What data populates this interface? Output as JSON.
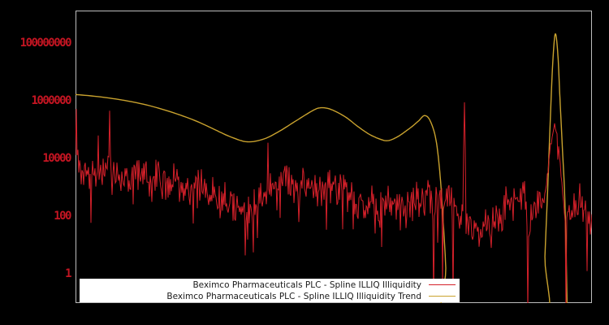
{
  "page": {
    "background": "#000000"
  },
  "chart_data": {
    "type": "line",
    "title": "",
    "x_axis": {
      "tick_labels": []
    },
    "y_axis": {
      "scale": "log",
      "tick_labels": [
        "1",
        "100",
        "10000",
        "1000000",
        "100000000"
      ],
      "tick_values": [
        1,
        100,
        10000,
        1000000,
        100000000
      ],
      "range_log10": [
        -1.01,
        9.13
      ],
      "label_color": "#c41522"
    },
    "plot": {
      "border_color": "#bdbdbd",
      "background": "#000000"
    },
    "legend": {
      "position": "bottom-center",
      "background": "#ffffff",
      "text_color": "#1a1a1a"
    },
    "series": [
      {
        "name": "Beximco Pharmaceuticals PLC - Spline ILLIQ Illiquidity",
        "color": "#d4202a",
        "style": "noisy-line",
        "noise": {
          "amplitude_log10": 0.5,
          "seed": 7,
          "downspike_chance": 0.05
        },
        "calm_regions": [
          [
            0.905,
            0.948
          ]
        ],
        "envelope_log10": [
          [
            0.0,
            3.6
          ],
          [
            0.011,
            3.45
          ],
          [
            0.027,
            3.4
          ],
          [
            0.042,
            3.45
          ],
          [
            0.063,
            3.55
          ],
          [
            0.082,
            3.45
          ],
          [
            0.105,
            3.35
          ],
          [
            0.129,
            3.4
          ],
          [
            0.153,
            3.35
          ],
          [
            0.184,
            3.2
          ],
          [
            0.215,
            3.05
          ],
          [
            0.247,
            2.9
          ],
          [
            0.278,
            2.6
          ],
          [
            0.31,
            2.35
          ],
          [
            0.333,
            2.3
          ],
          [
            0.357,
            2.6
          ],
          [
            0.381,
            2.95
          ],
          [
            0.404,
            3.1
          ],
          [
            0.428,
            3.2
          ],
          [
            0.451,
            3.2
          ],
          [
            0.478,
            3.1
          ],
          [
            0.499,
            3.0
          ],
          [
            0.522,
            2.85
          ],
          [
            0.546,
            2.65
          ],
          [
            0.569,
            2.5
          ],
          [
            0.593,
            2.4
          ],
          [
            0.616,
            2.3
          ],
          [
            0.64,
            2.4
          ],
          [
            0.656,
            2.5
          ],
          [
            0.679,
            2.6
          ],
          [
            0.703,
            2.55
          ],
          [
            0.73,
            2.5
          ],
          [
            0.742,
            2.1
          ],
          [
            0.758,
            1.75
          ],
          [
            0.781,
            1.55
          ],
          [
            0.805,
            1.65
          ],
          [
            0.826,
            2.15
          ],
          [
            0.844,
            2.5
          ],
          [
            0.86,
            2.65
          ],
          [
            0.871,
            2.8
          ],
          [
            0.876,
            1.6
          ],
          [
            0.884,
            2.1
          ],
          [
            0.892,
            2.5
          ],
          [
            0.899,
            2.45
          ],
          [
            0.907,
            2.6
          ],
          [
            0.914,
            3.4
          ],
          [
            0.92,
            4.4
          ],
          [
            0.928,
            5.3
          ],
          [
            0.936,
            4.4
          ],
          [
            0.942,
            3.0
          ],
          [
            0.95,
            1.6
          ],
          [
            0.958,
            2.2
          ],
          [
            0.966,
            2.3
          ],
          [
            0.975,
            2.45
          ],
          [
            0.983,
            2.3
          ],
          [
            0.991,
            2.1
          ],
          [
            1.0,
            2.0
          ]
        ],
        "spikes_log10": [
          [
            0.001,
            5.72
          ],
          [
            0.044,
            4.8
          ],
          [
            0.066,
            5.66
          ],
          [
            0.373,
            4.55
          ],
          [
            0.753,
            5.95
          ]
        ],
        "dips_log10": [
          [
            0.694,
            -0.9
          ],
          [
            0.71,
            -0.4
          ],
          [
            0.731,
            -0.9
          ],
          [
            0.876,
            -1.3
          ],
          [
            0.95,
            -1.3
          ]
        ]
      },
      {
        "name": "Beximco Pharmaceuticals PLC - Spline ILLIQ Illiquidity Trend",
        "color": "#c9a22e",
        "style": "smooth-line",
        "points_log10": [
          [
            0.0,
            6.22
          ],
          [
            0.042,
            6.15
          ],
          [
            0.09,
            6.03
          ],
          [
            0.137,
            5.86
          ],
          [
            0.184,
            5.62
          ],
          [
            0.231,
            5.32
          ],
          [
            0.27,
            5.0
          ],
          [
            0.302,
            4.74
          ],
          [
            0.333,
            4.58
          ],
          [
            0.365,
            4.68
          ],
          [
            0.396,
            4.96
          ],
          [
            0.428,
            5.32
          ],
          [
            0.459,
            5.66
          ],
          [
            0.475,
            5.76
          ],
          [
            0.495,
            5.7
          ],
          [
            0.522,
            5.45
          ],
          [
            0.546,
            5.12
          ],
          [
            0.569,
            4.84
          ],
          [
            0.59,
            4.67
          ],
          [
            0.605,
            4.62
          ],
          [
            0.624,
            4.76
          ],
          [
            0.648,
            5.06
          ],
          [
            0.664,
            5.3
          ],
          [
            0.676,
            5.49
          ],
          [
            0.687,
            5.3
          ],
          [
            0.698,
            4.65
          ],
          [
            0.706,
            3.4
          ],
          [
            0.712,
            1.8
          ],
          [
            0.717,
            0.2
          ],
          [
            0.721,
            -2.0
          ],
          [
            0.904,
            -2.0
          ],
          [
            0.909,
            0.6
          ],
          [
            0.914,
            2.8
          ],
          [
            0.919,
            5.2
          ],
          [
            0.924,
            7.3
          ],
          [
            0.929,
            8.32
          ],
          [
            0.934,
            7.6
          ],
          [
            0.938,
            6.1
          ],
          [
            0.943,
            4.3
          ],
          [
            0.948,
            2.3
          ],
          [
            0.953,
            -2.0
          ]
        ]
      }
    ]
  }
}
